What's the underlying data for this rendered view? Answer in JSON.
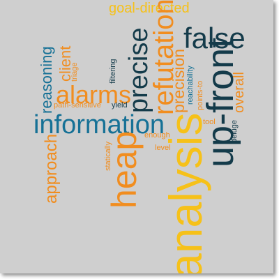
{
  "word_cloud": {
    "words": [
      {
        "text": "goal-directed",
        "color": "#f6c119",
        "orientation": "horizontal"
      },
      {
        "text": "false",
        "color": "#143b4a",
        "orientation": "horizontal"
      },
      {
        "text": "alarms",
        "color": "#f18d1f",
        "orientation": "horizontal"
      },
      {
        "text": "information",
        "color": "#167196",
        "orientation": "horizontal"
      },
      {
        "text": "path-sensitive",
        "color": "#f18d1f",
        "orientation": "horizontal"
      },
      {
        "text": "yield",
        "color": "#143b4a",
        "orientation": "horizontal"
      },
      {
        "text": "enough",
        "color": "#f18d1f",
        "orientation": "horizontal"
      },
      {
        "text": "level",
        "color": "#f18d1f",
        "orientation": "horizontal"
      },
      {
        "text": "tool",
        "color": "#f18d1f",
        "orientation": "horizontal"
      },
      {
        "text": "analysis",
        "color": "#f6c119",
        "orientation": "vertical"
      },
      {
        "text": "up-front",
        "color": "#143b4a",
        "orientation": "vertical"
      },
      {
        "text": "heap",
        "color": "#f18d1f",
        "orientation": "vertical"
      },
      {
        "text": "precise",
        "color": "#143b4a",
        "orientation": "vertical"
      },
      {
        "text": "refutation",
        "color": "#f18d1f",
        "orientation": "vertical"
      },
      {
        "text": "precision",
        "color": "#f18d1f",
        "orientation": "vertical"
      },
      {
        "text": "overall",
        "color": "#f18d1f",
        "orientation": "vertical"
      },
      {
        "text": "reasoning",
        "color": "#167196",
        "orientation": "vertical"
      },
      {
        "text": "client",
        "color": "#f18d1f",
        "orientation": "vertical"
      },
      {
        "text": "triage",
        "color": "#f18d1f",
        "orientation": "vertical"
      },
      {
        "text": "approach",
        "color": "#f18d1f",
        "orientation": "vertical"
      },
      {
        "text": "filtering",
        "color": "#143b4a",
        "orientation": "vertical"
      },
      {
        "text": "reachability",
        "color": "#167196",
        "orientation": "vertical"
      },
      {
        "text": "points-to",
        "color": "#f18d1f",
        "orientation": "vertical"
      },
      {
        "text": "statically",
        "color": "#f18d1f",
        "orientation": "vertical"
      },
      {
        "text": "deluge",
        "color": "#143b4a",
        "orientation": "vertical"
      }
    ]
  }
}
